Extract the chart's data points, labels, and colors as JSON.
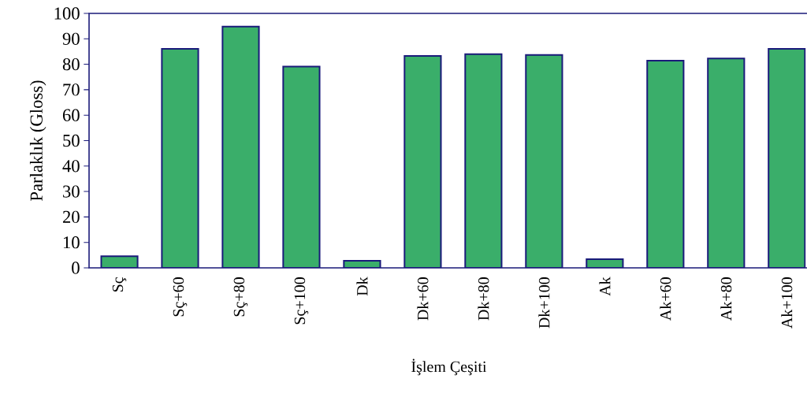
{
  "chart_data": {
    "type": "bar",
    "xlabel": "İşlem Çeşiti",
    "ylabel": "Parlaklık (Gloss)",
    "categories": [
      "Sç",
      "Sç+60",
      "Sç+80",
      "Sç+100",
      "Dk",
      "Dk+60",
      "Dk+80",
      "Dk+100",
      "Ak",
      "Ak+60",
      "Ak+80",
      "Ak+100"
    ],
    "values": [
      4.6,
      86.1,
      94.8,
      79.1,
      2.8,
      83.3,
      84.0,
      83.7,
      3.4,
      81.4,
      82.3,
      86.1
    ],
    "color": "#3aae6a",
    "ylim": [
      0,
      100
    ],
    "yticks": [
      0,
      10,
      20,
      30,
      40,
      50,
      60,
      70,
      80,
      90,
      100
    ],
    "grid": false
  }
}
